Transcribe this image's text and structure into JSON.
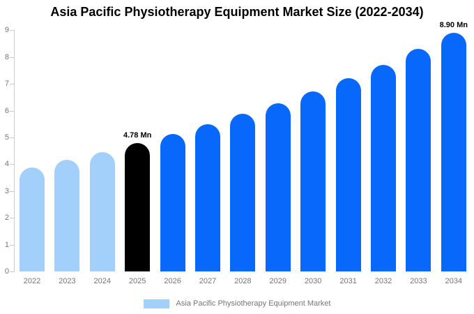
{
  "title": "Asia Pacific Physiotherapy Equipment Market Size (2022-2034)",
  "legend": {
    "label": "Asia Pacific Physiotherapy Equipment Market",
    "swatch_color": "#a3cffb"
  },
  "colors": {
    "historical_bar": "#a3cffb",
    "base_year_bar": "#000000",
    "forecast_bar": "#0768fb",
    "axis_line": "#cccccc",
    "tick_text": "#757575",
    "annotation_text": "#000000"
  },
  "chart_data": {
    "type": "bar",
    "title": "Asia Pacific Physiotherapy Equipment Market Size (2022-2034)",
    "unit": "Mn",
    "categories": [
      "2022",
      "2023",
      "2024",
      "2025",
      "2026",
      "2027",
      "2028",
      "2029",
      "2030",
      "2031",
      "2032",
      "2033",
      "2034"
    ],
    "values": [
      3.88,
      4.17,
      4.46,
      4.78,
      5.12,
      5.49,
      5.88,
      6.28,
      6.73,
      7.21,
      7.7,
      8.3,
      8.9
    ],
    "bar_colors": [
      "#a3cffb",
      "#a3cffb",
      "#a3cffb",
      "#000000",
      "#0768fb",
      "#0768fb",
      "#0768fb",
      "#0768fb",
      "#0768fb",
      "#0768fb",
      "#0768fb",
      "#0768fb",
      "#0768fb"
    ],
    "point_labels": [
      "",
      "",
      "",
      "4.78 Mn",
      "",
      "",
      "",
      "",
      "",
      "",
      "",
      "",
      "8.90 Mn"
    ],
    "xlabel": "",
    "ylabel": "",
    "ylim": [
      0,
      9
    ],
    "yticks": [
      0,
      1,
      2,
      3,
      4,
      5,
      6,
      7,
      8,
      9
    ],
    "grid": false,
    "legend_position": "bottom",
    "legend_entries": [
      "Asia Pacific Physiotherapy Equipment Market"
    ]
  }
}
